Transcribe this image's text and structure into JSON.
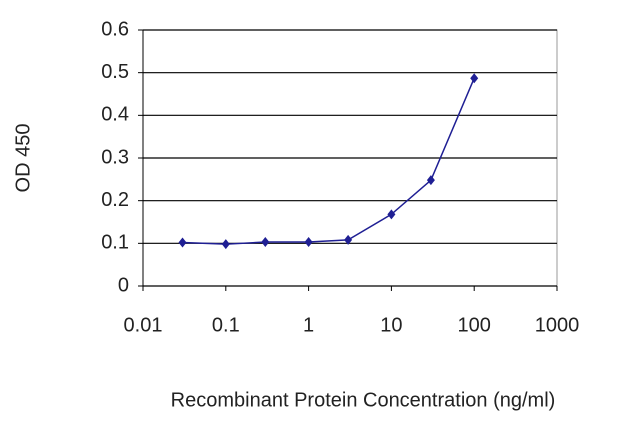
{
  "chart_data": {
    "type": "line",
    "x_label": "Recombinant Protein Concentration (ng/ml)",
    "y_label": "OD 450",
    "x": [
      0.03,
      0.1,
      0.3,
      1,
      3,
      10,
      30,
      100
    ],
    "values": [
      0.102,
      0.098,
      0.103,
      0.103,
      0.108,
      0.168,
      0.248,
      0.487
    ],
    "color": "#1f1f94",
    "xscale": "log",
    "xlim": [
      0.01,
      1000
    ],
    "xticks": [
      0.01,
      0.1,
      1,
      10,
      100,
      1000
    ],
    "ylim": [
      0,
      0.6
    ],
    "yticks": [
      0,
      0.1,
      0.2,
      0.3,
      0.4,
      0.5,
      0.6
    ],
    "grid": true
  }
}
